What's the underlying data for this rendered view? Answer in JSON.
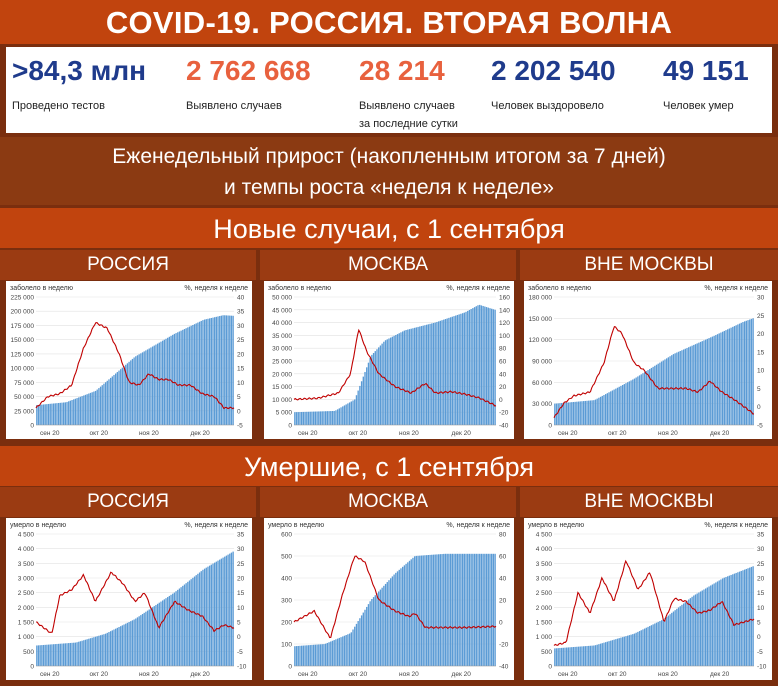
{
  "header": {
    "title": "COVID-19. РОССИЯ. ВТОРАЯ ВОЛНА"
  },
  "stats": [
    {
      "value": ">84,3 млн",
      "label": "Проведено тестов",
      "color": "#1f3b8c"
    },
    {
      "value": "2 762 668",
      "label": "Выявлено случаев",
      "color": "#e8613e"
    },
    {
      "value": "28 214",
      "label": "Выявлено случаев",
      "label2": "за последние сутки",
      "color": "#e8613e"
    },
    {
      "value": "2 202 540",
      "label": "Человек выздоровело",
      "color": "#1f3b8c"
    },
    {
      "value": "49 151",
      "label": "Человек умер",
      "color": "#1f3b8c"
    }
  ],
  "subtitle": {
    "line1": "Еженедельный прирост (накопленным итогом за 7 дней)",
    "line2": "и темпы роста «неделя к неделе»"
  },
  "sections": {
    "cases": "Новые случаи, с 1 сентября",
    "deaths": "Умершие, с 1 сентября"
  },
  "columns": [
    "РОССИЯ",
    "МОСКВА",
    "ВНЕ МОСКВЫ"
  ],
  "colors": {
    "bars": "#5b9bd5",
    "line": "#c00000"
  },
  "chart_data": [
    {
      "type": "bar",
      "title": "РОССИЯ",
      "ylabel": "заболело в неделю",
      "y2label": "%, неделя к неделе",
      "ylim": [
        0,
        225000
      ],
      "yticks": [
        0,
        25000,
        50000,
        75000,
        100000,
        125000,
        150000,
        175000,
        200000,
        225000
      ],
      "y2lim": [
        -5,
        40
      ],
      "y2ticks": [
        -5,
        0,
        5,
        10,
        15,
        20,
        25,
        30,
        35,
        40
      ],
      "xticks": [
        "сен 20",
        "окт 20",
        "ноя 20",
        "дек 20"
      ],
      "bar_anchors": [
        [
          0,
          35000
        ],
        [
          0.15,
          40000
        ],
        [
          0.3,
          60000
        ],
        [
          0.5,
          120000
        ],
        [
          0.7,
          160000
        ],
        [
          0.85,
          185000
        ],
        [
          0.95,
          193000
        ],
        [
          1,
          192000
        ]
      ],
      "line_anchors": [
        [
          0,
          1
        ],
        [
          0.06,
          5
        ],
        [
          0.12,
          6
        ],
        [
          0.18,
          9
        ],
        [
          0.24,
          22
        ],
        [
          0.3,
          31
        ],
        [
          0.36,
          29
        ],
        [
          0.42,
          20
        ],
        [
          0.47,
          10
        ],
        [
          0.52,
          9
        ],
        [
          0.57,
          13
        ],
        [
          0.62,
          11
        ],
        [
          0.67,
          11
        ],
        [
          0.72,
          9
        ],
        [
          0.78,
          9
        ],
        [
          0.84,
          6
        ],
        [
          0.9,
          5
        ],
        [
          0.95,
          1
        ],
        [
          1,
          1
        ]
      ]
    },
    {
      "type": "bar",
      "title": "МОСКВА",
      "ylabel": "заболело в неделю",
      "y2label": "%, неделя к неделе",
      "ylim": [
        0,
        50000
      ],
      "yticks": [
        0,
        5000,
        10000,
        15000,
        20000,
        25000,
        30000,
        35000,
        40000,
        45000,
        50000
      ],
      "y2lim": [
        -40,
        160
      ],
      "y2ticks": [
        -40,
        -20,
        0,
        20,
        40,
        60,
        80,
        100,
        120,
        140,
        160
      ],
      "xticks": [
        "сен 20",
        "окт 20",
        "ноя 20",
        "дек 20"
      ],
      "bar_anchors": [
        [
          0,
          5000
        ],
        [
          0.2,
          5500
        ],
        [
          0.3,
          10000
        ],
        [
          0.38,
          27000
        ],
        [
          0.45,
          33000
        ],
        [
          0.55,
          37000
        ],
        [
          0.7,
          40000
        ],
        [
          0.85,
          44000
        ],
        [
          0.92,
          47000
        ],
        [
          1,
          45000
        ]
      ],
      "line_anchors": [
        [
          0,
          0
        ],
        [
          0.12,
          2
        ],
        [
          0.22,
          10
        ],
        [
          0.28,
          40
        ],
        [
          0.32,
          110
        ],
        [
          0.36,
          75
        ],
        [
          0.42,
          40
        ],
        [
          0.5,
          20
        ],
        [
          0.58,
          10
        ],
        [
          0.65,
          25
        ],
        [
          0.7,
          10
        ],
        [
          0.78,
          12
        ],
        [
          0.85,
          8
        ],
        [
          0.92,
          2
        ],
        [
          1,
          -10
        ]
      ]
    },
    {
      "type": "bar",
      "title": "ВНЕ МОСКВЫ",
      "ylabel": "заболело в неделю",
      "y2label": "%, неделя к неделе",
      "ylim": [
        0,
        180000
      ],
      "yticks": [
        0,
        30000,
        60000,
        90000,
        120000,
        150000,
        180000
      ],
      "y2lim": [
        -5,
        30
      ],
      "y2ticks": [
        -5,
        0,
        5,
        10,
        15,
        20,
        25,
        30
      ],
      "xticks": [
        "сен 20",
        "окт 20",
        "ноя 20",
        "дек 20"
      ],
      "bar_anchors": [
        [
          0,
          30000
        ],
        [
          0.2,
          35000
        ],
        [
          0.4,
          65000
        ],
        [
          0.6,
          100000
        ],
        [
          0.8,
          125000
        ],
        [
          0.95,
          145000
        ],
        [
          1,
          150000
        ]
      ],
      "line_anchors": [
        [
          0,
          -3
        ],
        [
          0.05,
          1
        ],
        [
          0.1,
          3
        ],
        [
          0.18,
          4
        ],
        [
          0.25,
          12
        ],
        [
          0.3,
          22
        ],
        [
          0.34,
          20
        ],
        [
          0.4,
          12
        ],
        [
          0.45,
          10
        ],
        [
          0.52,
          5
        ],
        [
          0.6,
          5
        ],
        [
          0.66,
          5
        ],
        [
          0.72,
          4
        ],
        [
          0.78,
          7
        ],
        [
          0.84,
          4
        ],
        [
          0.9,
          2
        ],
        [
          1,
          -2
        ]
      ]
    },
    {
      "type": "bar",
      "title": "РОССИЯ",
      "ylabel": "умерло в неделю",
      "y2label": "%, неделя к неделе",
      "ylim": [
        0,
        4500
      ],
      "yticks": [
        0,
        500,
        1000,
        1500,
        2000,
        2500,
        3000,
        3500,
        4000,
        4500
      ],
      "y2lim": [
        -10,
        35
      ],
      "y2ticks": [
        -10,
        -5,
        0,
        5,
        10,
        15,
        20,
        25,
        30,
        35
      ],
      "xticks": [
        "сен 20",
        "окт 20",
        "ноя 20",
        "дек 20"
      ],
      "bar_anchors": [
        [
          0,
          700
        ],
        [
          0.2,
          800
        ],
        [
          0.35,
          1100
        ],
        [
          0.5,
          1600
        ],
        [
          0.7,
          2500
        ],
        [
          0.85,
          3300
        ],
        [
          1,
          3900
        ]
      ],
      "line_anchors": [
        [
          0,
          5
        ],
        [
          0.08,
          1
        ],
        [
          0.12,
          14
        ],
        [
          0.18,
          16
        ],
        [
          0.24,
          21
        ],
        [
          0.3,
          12
        ],
        [
          0.38,
          22
        ],
        [
          0.44,
          18
        ],
        [
          0.5,
          12
        ],
        [
          0.55,
          15
        ],
        [
          0.62,
          3
        ],
        [
          0.7,
          12
        ],
        [
          0.77,
          9
        ],
        [
          0.84,
          7
        ],
        [
          0.9,
          2
        ],
        [
          0.95,
          4
        ],
        [
          1,
          3
        ]
      ]
    },
    {
      "type": "bar",
      "title": "МОСКВА",
      "ylabel": "умерло в неделю",
      "y2label": "%, неделя к неделе",
      "ylim": [
        0,
        600
      ],
      "yticks": [
        0,
        100,
        200,
        300,
        400,
        500,
        600
      ],
      "y2lim": [
        -40,
        80
      ],
      "y2ticks": [
        -40,
        -20,
        0,
        20,
        40,
        60,
        80
      ],
      "xticks": [
        "сен 20",
        "окт 20",
        "ноя 20",
        "дек 20"
      ],
      "bar_anchors": [
        [
          0,
          90
        ],
        [
          0.15,
          100
        ],
        [
          0.28,
          150
        ],
        [
          0.38,
          300
        ],
        [
          0.5,
          420
        ],
        [
          0.6,
          500
        ],
        [
          0.75,
          510
        ],
        [
          1,
          510
        ]
      ],
      "line_anchors": [
        [
          0,
          0
        ],
        [
          0.1,
          10
        ],
        [
          0.18,
          -15
        ],
        [
          0.24,
          25
        ],
        [
          0.3,
          60
        ],
        [
          0.35,
          55
        ],
        [
          0.42,
          20
        ],
        [
          0.5,
          10
        ],
        [
          0.57,
          5
        ],
        [
          0.6,
          8
        ],
        [
          0.65,
          -5
        ],
        [
          0.75,
          -5
        ],
        [
          0.85,
          -5
        ],
        [
          1,
          -4
        ]
      ]
    },
    {
      "type": "bar",
      "title": "ВНЕ МОСКВЫ",
      "ylabel": "умерло в неделю",
      "y2label": "%, неделя к неделе",
      "ylim": [
        0,
        4500
      ],
      "yticks": [
        0,
        500,
        1000,
        1500,
        2000,
        2500,
        3000,
        3500,
        4000,
        4500
      ],
      "y2lim": [
        -10,
        35
      ],
      "y2ticks": [
        -10,
        -5,
        0,
        5,
        10,
        15,
        20,
        25,
        30,
        35
      ],
      "xticks": [
        "сен 20",
        "окт 20",
        "ноя 20",
        "дек 20"
      ],
      "bar_anchors": [
        [
          0,
          600
        ],
        [
          0.2,
          700
        ],
        [
          0.4,
          1100
        ],
        [
          0.55,
          1600
        ],
        [
          0.7,
          2400
        ],
        [
          0.85,
          3000
        ],
        [
          1,
          3400
        ]
      ],
      "line_anchors": [
        [
          0,
          -3
        ],
        [
          0.06,
          -2
        ],
        [
          0.12,
          15
        ],
        [
          0.18,
          8
        ],
        [
          0.24,
          20
        ],
        [
          0.3,
          12
        ],
        [
          0.36,
          26
        ],
        [
          0.42,
          16
        ],
        [
          0.48,
          22
        ],
        [
          0.55,
          5
        ],
        [
          0.6,
          13
        ],
        [
          0.66,
          12
        ],
        [
          0.72,
          8
        ],
        [
          0.78,
          9
        ],
        [
          0.84,
          12
        ],
        [
          0.9,
          4
        ],
        [
          0.95,
          5
        ],
        [
          1,
          6
        ]
      ]
    }
  ]
}
